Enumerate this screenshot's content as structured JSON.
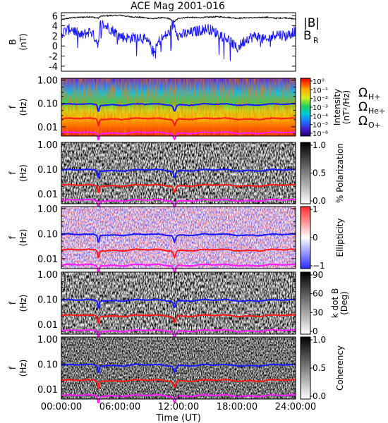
{
  "chart_data": {
    "title": "ACE Mag 2001-016",
    "time_axis": {
      "label": "Time (UT)",
      "ticks": [
        "00:00:00",
        "06:00:00",
        "12:00:00",
        "18:00:00",
        "24:00:00"
      ],
      "range_hours": [
        0,
        24
      ]
    },
    "colors": {
      "B_total": "#000000",
      "B_R": "#1a1aff",
      "H_plus": "#1a1aff",
      "He_plus": "#ff1a1a",
      "O_plus": "#ff1aff"
    },
    "panels": [
      {
        "type": "line",
        "ylabel_line1": "B",
        "ylabel_line2": "(nT)",
        "ylim": [
          -5,
          6.6
        ],
        "yticks": [
          "6",
          "4",
          "2",
          "0",
          "-2",
          "-4"
        ],
        "legend": [
          "|B|",
          "B"
        ],
        "legend_sub": "R",
        "series": [
          {
            "name": "|B|",
            "key": "B_total",
            "x": [
              0,
              1,
              2,
              3,
              3.8,
              4,
              5,
              6,
              7,
              8,
              9,
              9.5,
              10,
              11,
              11.5,
              12,
              13,
              14,
              15,
              16,
              17,
              18,
              19,
              20,
              21,
              22,
              23,
              24
            ],
            "y": [
              5.2,
              5.6,
              5.7,
              5.8,
              5.5,
              5.9,
              6.0,
              6.1,
              5.8,
              5.7,
              5.5,
              5.4,
              5.6,
              5.5,
              4.7,
              5.5,
              5.7,
              5.6,
              5.7,
              5.8,
              5.7,
              5.5,
              5.6,
              5.6,
              5.7,
              5.5,
              5.6,
              5.3
            ]
          },
          {
            "name": "B_R",
            "key": "B_R",
            "x": [
              0,
              1,
              2,
              3,
              3.8,
              4,
              5,
              6,
              7,
              8,
              9,
              9.5,
              10,
              11,
              11.5,
              12,
              13,
              14,
              15,
              16,
              17,
              18,
              19,
              20,
              21,
              22,
              23,
              24
            ],
            "y": [
              2.5,
              3.5,
              2.0,
              3.0,
              0.5,
              4.5,
              3.5,
              2.0,
              1.5,
              2.0,
              0.5,
              -1.5,
              1.0,
              2.5,
              4.5,
              2.0,
              2.5,
              3.0,
              3.5,
              2.5,
              1.5,
              -0.5,
              1.5,
              2.0,
              1.0,
              2.5,
              2.0,
              3.0
            ]
          }
        ]
      },
      {
        "type": "heatmap",
        "ylabel_line1": "f",
        "ylabel_line2": "(Hz)",
        "ylim_log": [
          0.004,
          1.2
        ],
        "yticks": [
          "1.00",
          "0.10",
          "0.01"
        ],
        "colorbar": "rainbow",
        "cbar_label_line1": "Intensity",
        "cbar_label_line2": "(nT²/Hz)",
        "cbar_ticks": [
          "10⁰",
          "10⁻¹",
          "10⁻²",
          "10⁻³",
          "10⁻⁴",
          "10⁻⁵",
          "10⁻⁶"
        ],
        "gyro_legend": [
          "Ω",
          "Ω",
          "Ω"
        ],
        "gyro_sub": [
          "H+",
          "He+",
          "O+"
        ]
      },
      {
        "type": "heatmap",
        "ylabel_line1": "f",
        "ylabel_line2": "(Hz)",
        "ylim_log": [
          0.004,
          1.2
        ],
        "yticks": [
          "1.00",
          "0.10",
          "0.01"
        ],
        "colorbar": "gray",
        "cbar_label_line1": "% Polarization",
        "cbar_label_line2": "",
        "cbar_ticks": [
          "1.0",
          "0.5",
          "0.0"
        ]
      },
      {
        "type": "heatmap",
        "ylabel_line1": "f",
        "ylabel_line2": "(Hz)",
        "ylim_log": [
          0.004,
          1.2
        ],
        "yticks": [
          "1.00",
          "0.10",
          "0.01"
        ],
        "colorbar": "bwr",
        "cbar_label_line1": "Ellipticity",
        "cbar_label_line2": "",
        "cbar_ticks": [
          "1",
          "0",
          "−1"
        ]
      },
      {
        "type": "heatmap",
        "ylabel_line1": "f",
        "ylabel_line2": "(Hz)",
        "ylim_log": [
          0.004,
          1.2
        ],
        "yticks": [
          "1.00",
          "0.10",
          "0.01"
        ],
        "colorbar": "gray",
        "cbar_label_line1": "k dot B",
        "cbar_label_line2": "(Deg)",
        "cbar_ticks": [
          "90",
          "60",
          "30",
          "0"
        ]
      },
      {
        "type": "heatmap",
        "ylabel_line1": "f",
        "ylabel_line2": "(Hz)",
        "ylim_log": [
          0.004,
          1.2
        ],
        "yticks": [
          "1.00",
          "0.10",
          "0.01"
        ],
        "colorbar": "gray",
        "cbar_label_line1": "Coherency",
        "cbar_label_line2": "",
        "cbar_ticks": [
          "1.0",
          "0.5",
          "0.0"
        ]
      }
    ],
    "gyrofrequencies_hz": {
      "H_plus": 0.09,
      "He_plus": 0.022,
      "O_plus": 0.0055
    }
  }
}
